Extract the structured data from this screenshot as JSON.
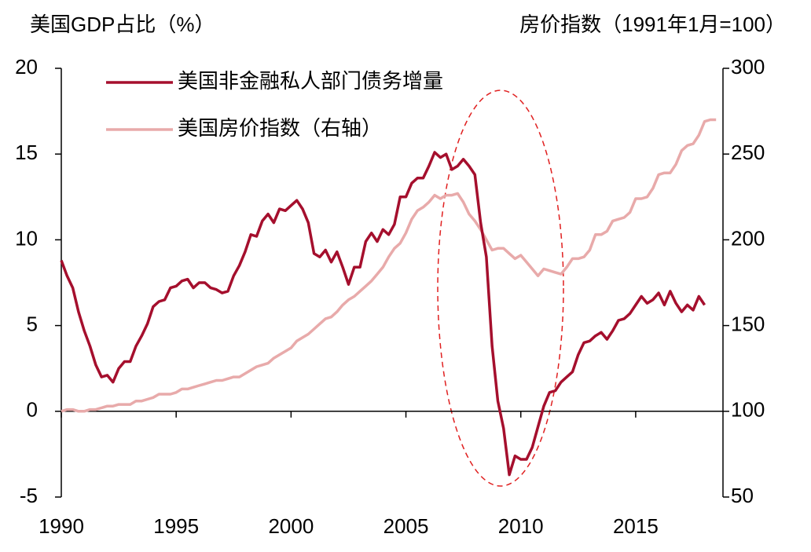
{
  "chart_data": {
    "type": "line",
    "y_label": "美国GDP占比（%）",
    "y2_label": "房价指数（1991年1月=100）",
    "x": [
      1990,
      1990.25,
      1990.5,
      1990.75,
      1991,
      1991.25,
      1991.5,
      1991.75,
      1992,
      1992.25,
      1992.5,
      1992.75,
      1993,
      1993.25,
      1993.5,
      1993.75,
      1994,
      1994.25,
      1994.5,
      1994.75,
      1995,
      1995.25,
      1995.5,
      1995.75,
      1996,
      1996.25,
      1996.5,
      1996.75,
      1997,
      1997.25,
      1997.5,
      1997.75,
      1998,
      1998.25,
      1998.5,
      1998.75,
      1999,
      1999.25,
      1999.5,
      1999.75,
      2000,
      2000.25,
      2000.5,
      2000.75,
      2001,
      2001.25,
      2001.5,
      2001.75,
      2002,
      2002.25,
      2002.5,
      2002.75,
      2003,
      2003.25,
      2003.5,
      2003.75,
      2004,
      2004.25,
      2004.5,
      2004.75,
      2005,
      2005.25,
      2005.5,
      2005.75,
      2006,
      2006.25,
      2006.5,
      2006.75,
      2007,
      2007.25,
      2007.5,
      2007.75,
      2008,
      2008.25,
      2008.5,
      2008.75,
      2009,
      2009.25,
      2009.5,
      2009.75,
      2010,
      2010.25,
      2010.5,
      2010.75,
      2011,
      2011.25,
      2011.5,
      2011.75,
      2012,
      2012.25,
      2012.5,
      2012.75,
      2013,
      2013.25,
      2013.5,
      2013.75,
      2014,
      2014.25,
      2014.5,
      2014.75,
      2015,
      2015.25,
      2015.5,
      2015.75,
      2016,
      2016.25,
      2016.5,
      2016.75,
      2017,
      2017.25,
      2017.5,
      2017.75,
      2018,
      2018.25,
      2018.5
    ],
    "series": [
      {
        "name": "美国非金融私人部门债务增量",
        "color": "#a50f2d",
        "axis": "y",
        "values": [
          8.8,
          7.9,
          7.2,
          5.8,
          4.7,
          3.8,
          2.7,
          2.0,
          2.1,
          1.7,
          2.5,
          2.9,
          2.9,
          3.8,
          4.4,
          5.1,
          6.1,
          6.4,
          6.5,
          7.2,
          7.3,
          7.6,
          7.7,
          7.2,
          7.5,
          7.5,
          7.2,
          7.1,
          6.9,
          7.0,
          7.9,
          8.5,
          9.3,
          10.3,
          10.2,
          11.1,
          11.5,
          11.0,
          11.8,
          11.7,
          12.0,
          12.3,
          11.8,
          11.0,
          9.2,
          9.0,
          9.4,
          8.7,
          9.3,
          8.4,
          7.4,
          8.4,
          8.4,
          9.9,
          10.4,
          9.9,
          10.6,
          10.3,
          10.9,
          12.5,
          12.5,
          13.3,
          13.6,
          13.6,
          14.3,
          15.1,
          14.8,
          15.0,
          14.1,
          14.3,
          14.7,
          14.3,
          13.8,
          11.0,
          9.0,
          3.8,
          0.6,
          -1.0,
          -3.7,
          -2.6,
          -2.8,
          -2.8,
          -2.1,
          -0.9,
          0.3,
          1.1,
          1.2,
          1.7,
          2.0,
          2.3,
          3.3,
          4.0,
          4.1,
          4.4,
          4.6,
          4.2,
          4.7,
          5.3,
          5.4,
          5.7,
          6.2,
          6.7,
          6.3,
          6.5,
          6.9,
          6.2,
          7.0,
          6.3,
          5.8,
          6.2,
          5.9,
          6.7,
          6.2,
          null,
          null
        ]
      },
      {
        "name": "美国房价指数（右轴）",
        "color": "#e8aaaa",
        "axis": "y2",
        "values": [
          100,
          101,
          101,
          100,
          100,
          101,
          101,
          102,
          103,
          103,
          104,
          104,
          104,
          106,
          106,
          107,
          108,
          110,
          110,
          110,
          111,
          113,
          113,
          114,
          115,
          116,
          117,
          118,
          118,
          119,
          120,
          120,
          122,
          124,
          126,
          127,
          128,
          131,
          133,
          135,
          137,
          141,
          143,
          145,
          148,
          151,
          154,
          155,
          158,
          162,
          165,
          167,
          170,
          173,
          176,
          180,
          184,
          190,
          195,
          198,
          204,
          212,
          217,
          219,
          222,
          226,
          224,
          226,
          226,
          227,
          222,
          215,
          211,
          206,
          200,
          194,
          195,
          195,
          192,
          189,
          191,
          187,
          183,
          179,
          183,
          182,
          181,
          180,
          184,
          189,
          189,
          190,
          194,
          203,
          203,
          205,
          211,
          212,
          213,
          216,
          224,
          224,
          225,
          230,
          238,
          239,
          239,
          244,
          252,
          255,
          256,
          261,
          269,
          270,
          270
        ]
      }
    ],
    "xlim": [
      1990,
      2018.8
    ],
    "xticks": [
      1990,
      1995,
      2000,
      2005,
      2010,
      2015
    ],
    "ylim": [
      -5,
      20
    ],
    "yticks": [
      -5,
      0,
      5,
      10,
      15,
      20
    ],
    "y2lim": [
      50,
      300
    ],
    "y2ticks": [
      50,
      100,
      150,
      200,
      250,
      300
    ],
    "legend": "upper left"
  }
}
